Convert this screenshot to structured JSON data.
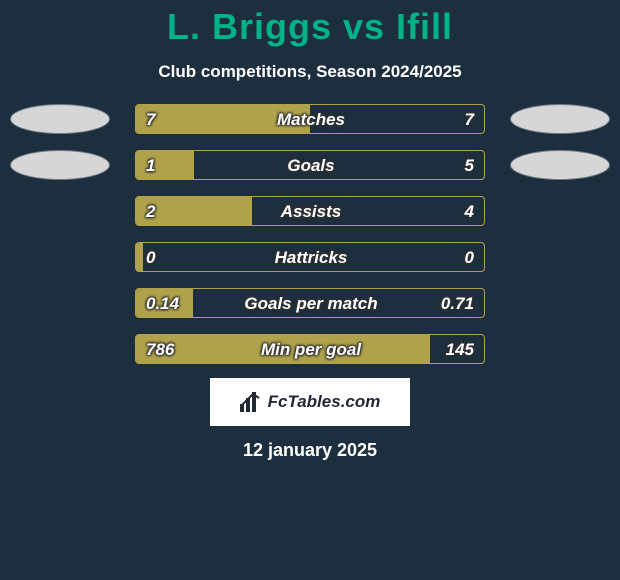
{
  "background_color": "#1d2f3e",
  "title": {
    "text": "L. Briggs vs Ifill",
    "color": "#00b386",
    "fontsize": 36,
    "fontweight": 900
  },
  "subtitle": {
    "text": "Club competitions, Season 2024/2025",
    "color": "#ffffff",
    "fontsize": 17,
    "fontweight": 700
  },
  "bar_style": {
    "track_width": 350,
    "track_height": 30,
    "border_color": "#b0a24a",
    "left_fill_color": "#b0a24a",
    "right_fill_color": "transparent",
    "text_color": "#ffffff",
    "text_fontsize": 17,
    "text_fontweight": 800,
    "text_italic": true,
    "text_shadow_color": "#333333"
  },
  "avatars": {
    "show_on_rows": [
      0,
      1
    ],
    "width": 100,
    "height": 30,
    "left_bg": "#d6d6d6",
    "right_bg": "#d6d6d6",
    "border_color": "#6b7b86"
  },
  "stats": [
    {
      "label": "Matches",
      "left_display": "7",
      "right_display": "7",
      "left_val": 7,
      "right_val": 7
    },
    {
      "label": "Goals",
      "left_display": "1",
      "right_display": "5",
      "left_val": 1,
      "right_val": 5
    },
    {
      "label": "Assists",
      "left_display": "2",
      "right_display": "4",
      "left_val": 2,
      "right_val": 4
    },
    {
      "label": "Hattricks",
      "left_display": "0",
      "right_display": "0",
      "left_val": 0,
      "right_val": 0
    },
    {
      "label": "Goals per match",
      "left_display": "0.14",
      "right_display": "0.71",
      "left_val": 0.14,
      "right_val": 0.71
    },
    {
      "label": "Min per goal",
      "left_display": "786",
      "right_display": "145",
      "left_val": 786,
      "right_val": 145
    }
  ],
  "watermark": {
    "text": "FcTables.com",
    "bg": "#ffffff",
    "text_color": "#222935",
    "fontsize": 17
  },
  "date": {
    "text": "12 january 2025",
    "color": "#ffffff",
    "fontsize": 18
  }
}
